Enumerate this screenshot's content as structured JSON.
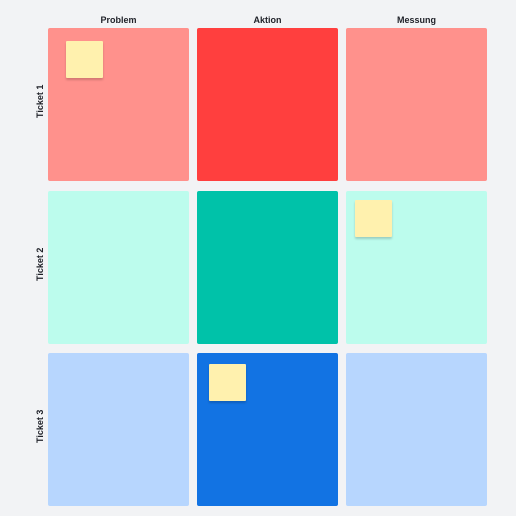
{
  "columns": [
    "Problem",
    "Aktion",
    "Messung"
  ],
  "rows": [
    "Ticket 1",
    "Ticket 2",
    "Ticket 3"
  ],
  "colors": {
    "background": "#f2f3f5",
    "ticket1_light": "#ff918c",
    "ticket1_strong": "#ff3f3e",
    "ticket2_light": "#bcfced",
    "ticket2_strong": "#00c2a9",
    "ticket3_light": "#b7d6fe",
    "ticket3_strong": "#1273e3",
    "sticky_note": "#fff1ae"
  },
  "sticky_notes": [
    {
      "row": "Ticket 1",
      "column": "Problem",
      "text": ""
    },
    {
      "row": "Ticket 2",
      "column": "Messung",
      "text": ""
    },
    {
      "row": "Ticket 3",
      "column": "Aktion",
      "text": ""
    }
  ]
}
